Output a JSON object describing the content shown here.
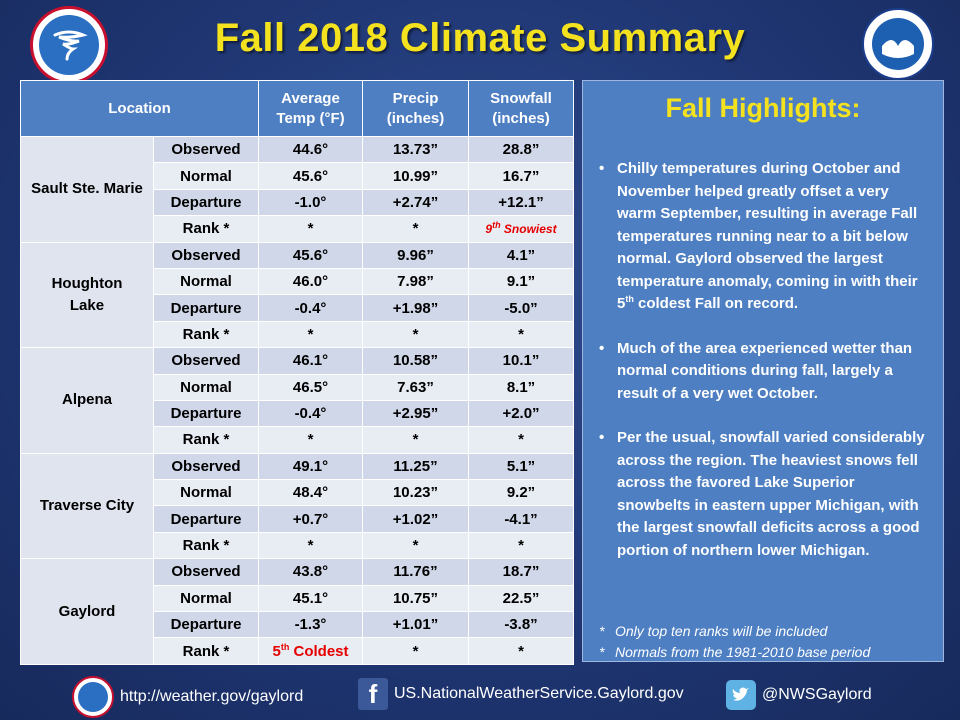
{
  "title": "Fall 2018 Climate Summary",
  "logos": {
    "left_icon": "nws-logo-icon",
    "right_icon": "noaa-logo-icon",
    "noaa_text": "NOAA"
  },
  "table": {
    "headers": {
      "location": "Location",
      "temp": [
        "Average",
        "Temp (°F)"
      ],
      "precip": [
        "Precip",
        "(inches)"
      ],
      "snow": [
        "Snowfall",
        "(inches)"
      ]
    },
    "row_labels": [
      "Observed",
      "Normal",
      "Departure",
      "Rank *"
    ],
    "stations": [
      {
        "name_lines": [
          "Sault Ste. Marie"
        ],
        "rows": [
          [
            "44.6°",
            "13.73”",
            "28.8”"
          ],
          [
            "45.6°",
            "10.99”",
            "16.7”"
          ],
          [
            "-1.0°",
            "+2.74”",
            "+12.1”"
          ],
          [
            "*",
            "*",
            ""
          ]
        ],
        "snow_rank": {
          "num": "9",
          "sup": "th",
          "text": " Snowiest"
        }
      },
      {
        "name_lines": [
          "Houghton",
          "Lake"
        ],
        "rows": [
          [
            "45.6°",
            "9.96”",
            "4.1”"
          ],
          [
            "46.0°",
            "7.98”",
            "9.1”"
          ],
          [
            "-0.4°",
            "+1.98”",
            "-5.0”"
          ],
          [
            "*",
            "*",
            "*"
          ]
        ]
      },
      {
        "name_lines": [
          "Alpena"
        ],
        "rows": [
          [
            "46.1°",
            "10.58”",
            "10.1”"
          ],
          [
            "46.5°",
            "7.63”",
            "8.1”"
          ],
          [
            "-0.4°",
            "+2.95”",
            "+2.0”"
          ],
          [
            "*",
            "*",
            "*"
          ]
        ]
      },
      {
        "name_lines": [
          "Traverse City"
        ],
        "rows": [
          [
            "49.1°",
            "11.25”",
            "5.1”"
          ],
          [
            "48.4°",
            "10.23”",
            "9.2”"
          ],
          [
            "+0.7°",
            "+1.02”",
            "-4.1”"
          ],
          [
            "*",
            "*",
            "*"
          ]
        ]
      },
      {
        "name_lines": [
          "Gaylord"
        ],
        "rows": [
          [
            "43.8°",
            "11.76”",
            "18.7”"
          ],
          [
            "45.1°",
            "10.75”",
            "22.5”"
          ],
          [
            "-1.3°",
            "+1.01”",
            "-3.8”"
          ],
          [
            "",
            "*",
            "*"
          ]
        ],
        "temp_rank": {
          "num": "5",
          "sup": "th",
          "text": " Coldest"
        }
      }
    ]
  },
  "highlights": {
    "title": "Fall Highlights:",
    "bullets": [
      "Chilly temperatures during October and November helped greatly offset a very warm September, resulting in average Fall temperatures running near to a bit below normal. Gaylord observed the largest temperature anomaly, coming in with their 5th coldest Fall on record.",
      "Much of the area experienced wetter than normal conditions during fall, largely a result of a very wet October.",
      "Per the usual, snowfall varied considerably across the region. The heaviest snows fell across the favored Lake Superior snowbelts in eastern upper Michigan, with the largest snowfall deficits across a good portion of northern lower Michigan."
    ],
    "notes": [
      "Only top ten ranks will be included",
      "Normals from the 1981-2010 base period"
    ]
  },
  "footer": {
    "website": "http://weather.gov/gaylord",
    "facebook": "US.NationalWeatherService.Gaylord.gov",
    "twitter": "@NWSGaylord",
    "icons": [
      "nws-logo-icon",
      "facebook-icon",
      "twitter-icon"
    ]
  }
}
